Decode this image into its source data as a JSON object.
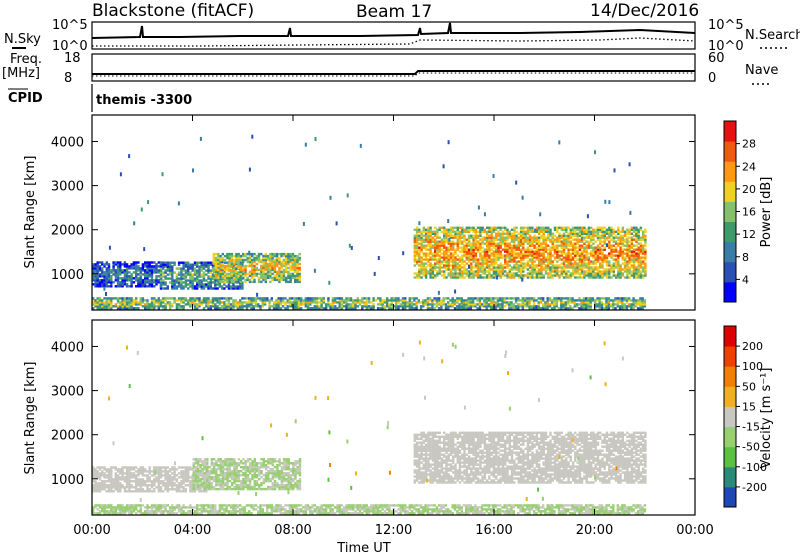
{
  "header": {
    "station": "Blackstone (fitACF)",
    "beam": "Beam 17",
    "date": "14/Dec/2016"
  },
  "params": {
    "nsky_label": "N.Sky",
    "nsky_ticks": [
      "10^5",
      "10^0"
    ],
    "nsearch_label": "N.Search",
    "nsearch_ticks": [
      "10^5",
      "10^0"
    ],
    "freq_label": "Freq.",
    "freq_unit": "[MHz]",
    "freq_ticks": [
      "18",
      "8"
    ],
    "nave_label": "Nave",
    "nave_ticks": [
      "60",
      "0"
    ],
    "cpid_label": "CPID",
    "cpid_value": "themis -3300"
  },
  "chart_data": [
    {
      "type": "heatmap",
      "quantity": "Power",
      "ylabel": "Slant Range [km]",
      "ylim": [
        180,
        4600
      ],
      "yticks": [
        "4000",
        "3000",
        "2000",
        "1000"
      ],
      "xlabel": "Time UT",
      "xlim_hours": [
        0,
        24
      ],
      "colorbar": {
        "label": "Power [dB]",
        "ticks": [
          "28",
          "24",
          "20",
          "16",
          "12",
          "8",
          "4"
        ],
        "colors": [
          "#0000ff",
          "#2a50b4",
          "#3a7ca8",
          "#3e9a6c",
          "#86c06a",
          "#f0d020",
          "#ff9a10",
          "#f05a10",
          "#e81010"
        ],
        "range": [
          0,
          32
        ]
      },
      "regions": [
        {
          "t": [
            0.0,
            2.7
          ],
          "range_km": [
            700,
            1250
          ],
          "value": 6
        },
        {
          "t": [
            2.7,
            6.0
          ],
          "range_km": [
            650,
            1250
          ],
          "value": 10
        },
        {
          "t": [
            4.8,
            8.3
          ],
          "range_km": [
            800,
            1450
          ],
          "value": 17
        },
        {
          "t": [
            12.8,
            22.0
          ],
          "range_km": [
            900,
            2050
          ],
          "value": 20
        },
        {
          "t": [
            0.0,
            22.0
          ],
          "range_km": [
            200,
            450
          ],
          "value": 14
        }
      ]
    },
    {
      "type": "heatmap",
      "quantity": "Velocity",
      "ylabel": "Slant Range [km]",
      "ylim": [
        180,
        4600
      ],
      "yticks": [
        "4000",
        "3000",
        "2000",
        "1000"
      ],
      "xlabel": "Time UT",
      "xticks": [
        "00:00",
        "04:00",
        "08:00",
        "12:00",
        "16:00",
        "20:00",
        "00:00"
      ],
      "xlim_hours": [
        0,
        24
      ],
      "colorbar": {
        "label": "Velocity [m s⁻¹]",
        "ticks": [
          "200",
          "100",
          "50",
          "15",
          "-15",
          "-50",
          "-100",
          "-200"
        ],
        "colors": [
          "#1e46b4",
          "#2a8a7a",
          "#5cc040",
          "#98d070",
          "#c8c8c0",
          "#f0b020",
          "#f08000",
          "#f04000",
          "#e00000"
        ],
        "range": [
          -250,
          250
        ]
      },
      "regions": [
        {
          "t": [
            0.0,
            4.5
          ],
          "range_km": [
            700,
            1250
          ],
          "value": 0
        },
        {
          "t": [
            4.0,
            8.3
          ],
          "range_km": [
            750,
            1450
          ],
          "value": -30
        },
        {
          "t": [
            12.8,
            22.0
          ],
          "range_km": [
            900,
            2050
          ],
          "value": 0
        },
        {
          "t": [
            0.0,
            22.0
          ],
          "range_km": [
            200,
            420
          ],
          "value": -30
        }
      ]
    }
  ]
}
